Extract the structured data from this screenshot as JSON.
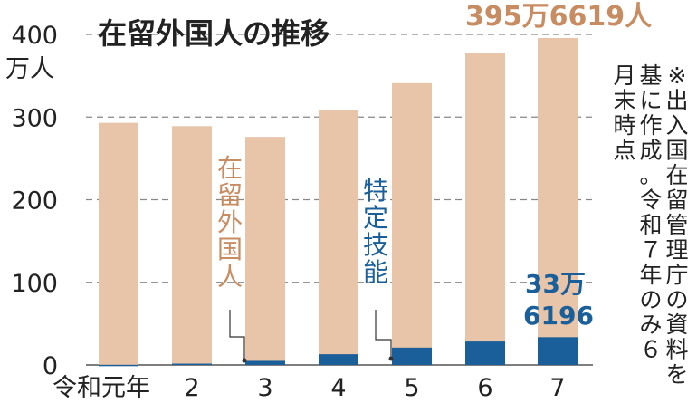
{
  "chart_data": {
    "type": "bar",
    "stacked": "overlay",
    "title": "在留外国人の推移",
    "y_unit": "万人",
    "ylim": [
      0,
      400
    ],
    "yticks": [
      0,
      100,
      200,
      300,
      400
    ],
    "grid": "horizontal-dashed",
    "categories": [
      "令和元年",
      "2",
      "3",
      "4",
      "5",
      "6",
      "7"
    ],
    "series": [
      {
        "name": "在留外国人",
        "color": "#e8c4a9",
        "label_color": "#c88c62",
        "values": [
          293,
          289,
          276,
          308,
          341,
          377,
          395.6619
        ]
      },
      {
        "name": "特定技能",
        "color": "#1a5f99",
        "label_color": "#1a5f99",
        "values": [
          0.2,
          1.6,
          5,
          13,
          21,
          28.4,
          33.6196
        ]
      }
    ],
    "annotations": {
      "last_total": "395万6619人",
      "last_ssw_line1": "33万",
      "last_ssw_line2": "6196"
    },
    "note": "※出入国在留管理庁の資料を基に作成。令和７年のみ６月末時点"
  }
}
